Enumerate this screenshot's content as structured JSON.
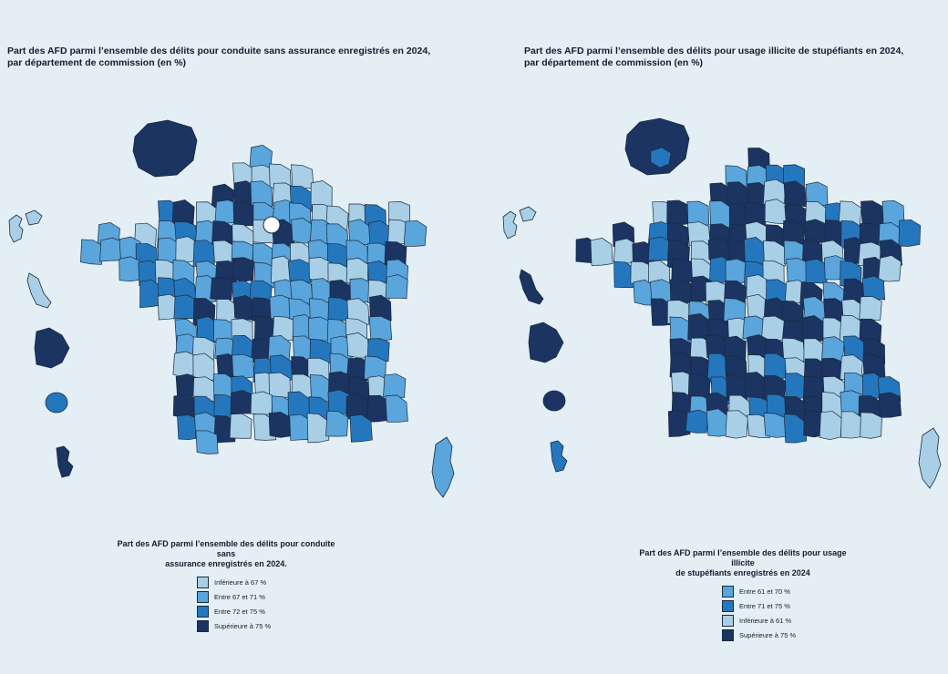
{
  "colors": {
    "background": "#e3eef5",
    "cls_lightest": "#a9cfe6",
    "cls_light": "#5aa5dc",
    "cls_medium": "#2577bd",
    "cls_dark": "#1b3461",
    "border": "#1a2b40"
  },
  "maps": [
    {
      "title": "Part des AFD parmi l’ensemble des délits pour conduite sans assurance enregistrés en 2024,\npar département de commission (en %)",
      "legend": {
        "title": "Part des AFD parmi l’ensemble des délits pour conduite sans\nassurance enregistrés en 2024.",
        "items": [
          {
            "label": "Inférieure à 67 %",
            "color": "#a9cfe6"
          },
          {
            "label": "Entre 67 et 71 %",
            "color": "#5aa5dc"
          },
          {
            "label": "Entre 72 et 75 %",
            "color": "#2577bd"
          },
          {
            "label": "Supérieure à 75 %",
            "color": "#1b3461"
          }
        ]
      }
    },
    {
      "title": "Part des AFD parmi l’ensemble des délits pour usage illicite de stupéfiants en 2024,\npar département de commission (en %)",
      "legend": {
        "title": "Part des AFD parmi l’ensemble des délits pour usage illicite\nde stupéfiants enregistrés en 2024",
        "items": [
          {
            "label": "Entre 61 et 70 %",
            "color": "#5aa5dc"
          },
          {
            "label": "Entre 71 et 75 %",
            "color": "#2577bd"
          },
          {
            "label": "Inférieure à 61 %",
            "color": "#a9cfe6"
          },
          {
            "label": "Supérieure à 75 %",
            "color": "#1b3461"
          }
        ]
      }
    }
  ]
}
